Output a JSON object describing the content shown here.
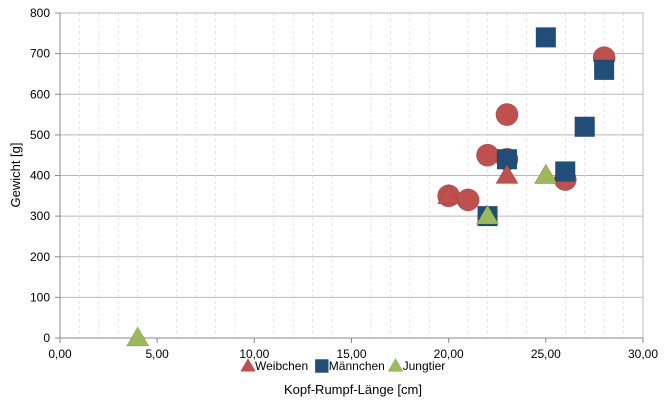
{
  "chart_data": {
    "type": "scatter",
    "title": "",
    "xlabel": "Kopf-Rumpf-Länge [cm]",
    "ylabel": "Gewicht  [g]",
    "xlim": [
      0,
      30
    ],
    "ylim": [
      0,
      800
    ],
    "x_ticks": [
      "0,00",
      "5,00",
      "10,00",
      "15,00",
      "20,00",
      "25,00",
      "30,00"
    ],
    "y_ticks": [
      "0",
      "100",
      "200",
      "300",
      "400",
      "500",
      "600",
      "700",
      "800"
    ],
    "x_tick_values": [
      0,
      5,
      10,
      15,
      20,
      25,
      30
    ],
    "y_tick_values": [
      0,
      100,
      200,
      300,
      400,
      500,
      600,
      700,
      800
    ],
    "grid": {
      "x_major": false,
      "y_major": true,
      "x_minor_dashed": true
    },
    "legend_position": "bottom",
    "series": [
      {
        "name": "Weibchen",
        "marker": "triangle",
        "color": "#c0504d",
        "points": [
          {
            "x": 20,
            "y": 350
          },
          {
            "x": 23,
            "y": 400
          },
          {
            "x": 25,
            "y": 400
          }
        ]
      },
      {
        "name": "Männchen",
        "marker": "square",
        "color": "#1f4e79",
        "points": [
          {
            "x": 22,
            "y": 300
          },
          {
            "x": 23,
            "y": 440
          },
          {
            "x": 25,
            "y": 740
          },
          {
            "x": 26,
            "y": 410
          },
          {
            "x": 27,
            "y": 520
          },
          {
            "x": 28,
            "y": 660
          }
        ]
      },
      {
        "name": "Jungtier",
        "marker": "triangle",
        "color": "#9bbb59",
        "points": [
          {
            "x": 4,
            "y": 0
          },
          {
            "x": 22,
            "y": 300
          },
          {
            "x": 25,
            "y": 400
          }
        ]
      },
      {
        "name": "",
        "marker": "circle",
        "color": "#c0504d",
        "points": [
          {
            "x": 20,
            "y": 350
          },
          {
            "x": 21,
            "y": 340
          },
          {
            "x": 22,
            "y": 450
          },
          {
            "x": 23,
            "y": 550
          },
          {
            "x": 23,
            "y": 440
          },
          {
            "x": 26,
            "y": 390
          },
          {
            "x": 28,
            "y": 690
          }
        ]
      }
    ]
  }
}
